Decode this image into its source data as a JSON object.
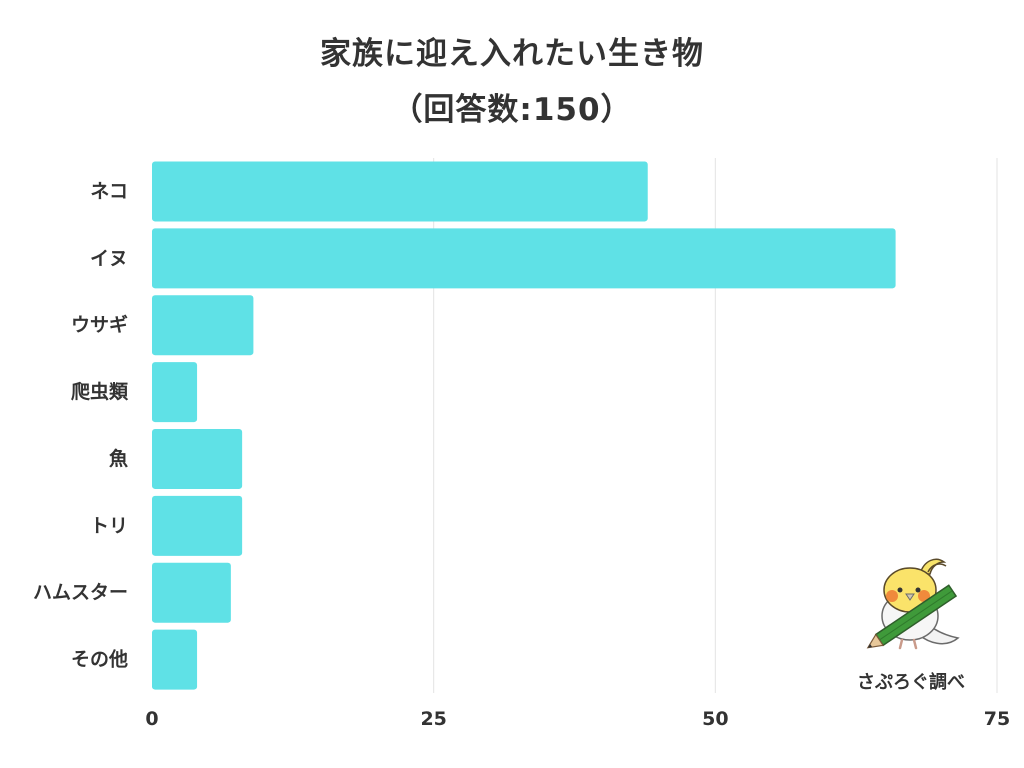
{
  "chart_data": {
    "type": "bar",
    "orientation": "horizontal",
    "title_line1": "家族に迎え入れたい生き物",
    "title_line2": "（回答数:150）",
    "categories": [
      "ネコ",
      "イヌ",
      "ウサギ",
      "爬虫類",
      "魚",
      "トリ",
      "ハムスター",
      "その他"
    ],
    "values": [
      44,
      66,
      9,
      4,
      8,
      8,
      7,
      4
    ],
    "xlim": [
      0,
      75
    ],
    "xticks": [
      "0",
      "25",
      "50",
      "75"
    ],
    "xtick_values": [
      0,
      25,
      50,
      75
    ],
    "grid": true,
    "bar_color": "#5fe1e6",
    "grid_color": "#e3e3e3"
  },
  "credit": "さぷろぐ調べ",
  "mascot_icon": "cockatiel-with-pencil-icon"
}
